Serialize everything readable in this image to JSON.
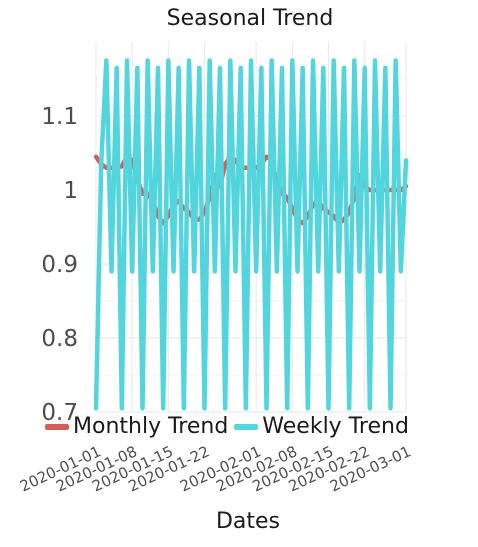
{
  "chart_data": {
    "type": "line",
    "title": "Seasonal Trend",
    "xlabel": "Dates",
    "ylabel": "",
    "ylim": [
      0.7,
      1.2
    ],
    "yticks": [
      0.7,
      0.8,
      0.9,
      1.0,
      1.1
    ],
    "ytick_labels": [
      "0.7",
      "0.8",
      "0.9",
      "1",
      "1.1"
    ],
    "xlim": [
      "2020-01-01",
      "2020-03-01"
    ],
    "xtick_labels": [
      "2020-01-01",
      "2020-01-08",
      "2020-01-15",
      "2020-01-22",
      "2020-02-01",
      "2020-02-08",
      "2020-02-15",
      "2020-02-22",
      "2020-03-01"
    ],
    "grid": true,
    "legend_position": "bottom",
    "x": [
      "2020-01-01",
      "2020-01-02",
      "2020-01-03",
      "2020-01-04",
      "2020-01-05",
      "2020-01-06",
      "2020-01-07",
      "2020-01-08",
      "2020-01-09",
      "2020-01-10",
      "2020-01-11",
      "2020-01-12",
      "2020-01-13",
      "2020-01-14",
      "2020-01-15",
      "2020-01-16",
      "2020-01-17",
      "2020-01-18",
      "2020-01-19",
      "2020-01-20",
      "2020-01-21",
      "2020-01-22",
      "2020-01-23",
      "2020-01-24",
      "2020-01-25",
      "2020-01-26",
      "2020-01-27",
      "2020-01-28",
      "2020-01-29",
      "2020-01-30",
      "2020-01-31",
      "2020-02-01",
      "2020-02-02",
      "2020-02-03",
      "2020-02-04",
      "2020-02-05",
      "2020-02-06",
      "2020-02-07",
      "2020-02-08",
      "2020-02-09",
      "2020-02-10",
      "2020-02-11",
      "2020-02-12",
      "2020-02-13",
      "2020-02-14",
      "2020-02-15",
      "2020-02-16",
      "2020-02-17",
      "2020-02-18",
      "2020-02-19",
      "2020-02-20",
      "2020-02-21",
      "2020-02-22",
      "2020-02-23",
      "2020-02-24",
      "2020-02-25",
      "2020-02-26",
      "2020-02-27",
      "2020-02-28",
      "2020-02-29",
      "2020-03-01"
    ],
    "series": [
      {
        "name": "Monthly Trend",
        "color": "#d2605a",
        "values": [
          1.045,
          1.035,
          1.03,
          1.03,
          1.03,
          1.032,
          1.045,
          1.04,
          1.015,
          0.995,
          0.995,
          0.985,
          0.965,
          0.955,
          0.965,
          0.98,
          0.985,
          0.975,
          0.97,
          0.96,
          0.96,
          0.97,
          0.99,
          1.02,
          1.005,
          1.035,
          1.045,
          1.04,
          1.03,
          1.03,
          1.03,
          1.03,
          1.035,
          1.045,
          1.04,
          1.01,
          0.995,
          0.99,
          0.975,
          0.96,
          0.955,
          0.965,
          0.98,
          0.985,
          0.975,
          0.97,
          0.965,
          0.955,
          0.96,
          0.97,
          0.99,
          1.02,
          1.005,
          1.0,
          1.0,
          1.0,
          1.0,
          1.0,
          1.0,
          1.0,
          1.005
        ]
      },
      {
        "name": "Weekly Trend",
        "color": "#52d5dc",
        "values": [
          0.705,
          1.035,
          1.175,
          0.89,
          1.165,
          0.705,
          1.175,
          0.89,
          1.165,
          0.705,
          1.175,
          0.89,
          1.165,
          0.705,
          1.175,
          0.89,
          1.165,
          0.705,
          1.175,
          0.89,
          1.165,
          0.705,
          1.175,
          0.89,
          1.165,
          0.705,
          1.175,
          0.89,
          1.165,
          0.705,
          1.175,
          0.89,
          1.165,
          0.705,
          1.175,
          0.89,
          1.165,
          0.705,
          1.175,
          0.89,
          1.165,
          0.705,
          1.175,
          0.89,
          1.165,
          0.705,
          1.175,
          0.89,
          1.165,
          0.705,
          1.175,
          0.89,
          1.165,
          0.705,
          1.175,
          0.89,
          1.165,
          0.705,
          1.175,
          0.89,
          1.04
        ]
      }
    ]
  }
}
